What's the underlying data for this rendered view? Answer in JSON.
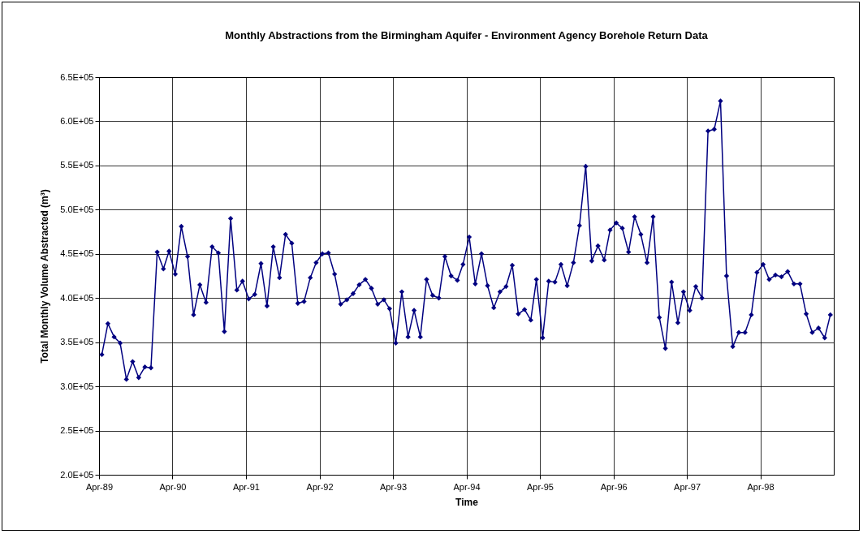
{
  "chart_data": {
    "type": "line",
    "title": "Monthly Abstractions from the Birmingham Aquifer - Environment Agency Borehole Return Data",
    "xlabel": "Time",
    "ylabel": "Total Monthly Volume Abstracted (m³)",
    "x": [
      "1989-04-15",
      "1989-05-15",
      "1989-06-15",
      "1989-07-15",
      "1989-08-15",
      "1989-09-15",
      "1989-10-15",
      "1989-11-15",
      "1989-12-15",
      "1990-01-15",
      "1990-02-15",
      "1990-03-15",
      "1990-04-15",
      "1990-05-15",
      "1990-06-15",
      "1990-07-15",
      "1990-08-15",
      "1990-09-15",
      "1990-10-15",
      "1990-11-15",
      "1990-12-15",
      "1991-01-15",
      "1991-02-15",
      "1991-03-15",
      "1991-04-15",
      "1991-05-15",
      "1991-06-15",
      "1991-07-15",
      "1991-08-15",
      "1991-09-15",
      "1991-10-15",
      "1991-11-15",
      "1991-12-15",
      "1992-01-15",
      "1992-02-15",
      "1992-03-15",
      "1992-04-15",
      "1992-05-15",
      "1992-06-15",
      "1992-07-15",
      "1992-08-15",
      "1992-09-15",
      "1992-10-15",
      "1992-11-15",
      "1992-12-15",
      "1993-01-15",
      "1993-02-15",
      "1993-03-15",
      "1993-04-15",
      "1993-05-15",
      "1993-06-15",
      "1993-07-15",
      "1993-08-15",
      "1993-09-15",
      "1993-10-15",
      "1993-11-15",
      "1993-12-15",
      "1994-01-15",
      "1994-02-15",
      "1994-03-15",
      "1994-04-15",
      "1994-05-15",
      "1994-06-15",
      "1994-07-15",
      "1994-08-15",
      "1994-09-15",
      "1994-10-15",
      "1994-11-15",
      "1994-12-15",
      "1995-01-15",
      "1995-02-15",
      "1995-03-15",
      "1995-04-15",
      "1995-05-15",
      "1995-06-15",
      "1995-07-15",
      "1995-08-15",
      "1995-09-15",
      "1995-10-15",
      "1995-11-15",
      "1995-12-15",
      "1996-01-15",
      "1996-02-15",
      "1996-03-15",
      "1996-04-15",
      "1996-05-15",
      "1996-06-15",
      "1996-07-15",
      "1996-08-15",
      "1996-09-15",
      "1996-10-15",
      "1996-11-15",
      "1996-12-15",
      "1997-01-15",
      "1997-02-15",
      "1997-03-15",
      "1997-04-15",
      "1997-05-15",
      "1997-06-15",
      "1997-07-15",
      "1997-08-15",
      "1997-09-15",
      "1997-10-15",
      "1997-11-15",
      "1997-12-15",
      "1998-01-15",
      "1998-02-15",
      "1998-03-15",
      "1998-04-15",
      "1998-05-15",
      "1998-06-15",
      "1998-07-15",
      "1998-08-15",
      "1998-09-15",
      "1998-10-15",
      "1998-11-15",
      "1998-12-15",
      "1999-01-15",
      "1999-02-15",
      "1999-03-15"
    ],
    "series": [
      {
        "color": "#000080",
        "values": [
          336000,
          371000,
          356000,
          349000,
          308000,
          328000,
          310000,
          322000,
          321000,
          452000,
          433000,
          453000,
          427000,
          481000,
          447000,
          381000,
          415000,
          395000,
          458000,
          451000,
          362000,
          490000,
          409000,
          419000,
          399000,
          404000,
          439000,
          391000,
          458000,
          423000,
          472000,
          462000,
          394000,
          396000,
          423000,
          440000,
          450000,
          451000,
          427000,
          393000,
          398000,
          405000,
          415000,
          421000,
          411000,
          393000,
          398000,
          388000,
          349000,
          407000,
          356000,
          386000,
          356000,
          421000,
          403000,
          400000,
          447000,
          425000,
          420000,
          438000,
          469000,
          416000,
          450000,
          414000,
          389000,
          407000,
          413000,
          437000,
          382000,
          387000,
          375000,
          421000,
          355000,
          419000,
          418000,
          438000,
          414000,
          440000,
          482000,
          549000,
          442000,
          459000,
          443000,
          477000,
          485000,
          479000,
          452000,
          492000,
          472000,
          440000,
          492000,
          378000,
          343000,
          418000,
          372000,
          407000,
          386000,
          413000,
          400000,
          589000,
          591000,
          623000,
          425000,
          345000,
          361000,
          361000,
          381000,
          429000,
          438000,
          421000,
          426000,
          424000,
          430000,
          416000,
          416000,
          382000,
          361000,
          366000,
          355000,
          381000
        ]
      }
    ],
    "xlim": [
      "1989-04",
      "1999-04"
    ],
    "xticks": [
      {
        "value": "1989-04",
        "label": "Apr-89"
      },
      {
        "value": "1990-04",
        "label": "Apr-90"
      },
      {
        "value": "1991-04",
        "label": "Apr-91"
      },
      {
        "value": "1992-04",
        "label": "Apr-92"
      },
      {
        "value": "1993-04",
        "label": "Apr-93"
      },
      {
        "value": "1994-04",
        "label": "Apr-94"
      },
      {
        "value": "1995-04",
        "label": "Apr-95"
      },
      {
        "value": "1996-04",
        "label": "Apr-96"
      },
      {
        "value": "1997-04",
        "label": "Apr-97"
      },
      {
        "value": "1998-04",
        "label": "Apr-98"
      }
    ],
    "ylim": [
      200000,
      650000
    ],
    "yticks": [
      {
        "value": 200000,
        "label": "2.0E+05"
      },
      {
        "value": 250000,
        "label": "2.5E+05"
      },
      {
        "value": 300000,
        "label": "3.0E+05"
      },
      {
        "value": 350000,
        "label": "3.5E+05"
      },
      {
        "value": 400000,
        "label": "4.0E+05"
      },
      {
        "value": 450000,
        "label": "4.5E+05"
      },
      {
        "value": 500000,
        "label": "5.0E+05"
      },
      {
        "value": 550000,
        "label": "5.5E+05"
      },
      {
        "value": 600000,
        "label": "6.0E+05"
      },
      {
        "value": 650000,
        "label": "6.5E+05"
      }
    ],
    "grid": true,
    "marker": "diamond",
    "line_style": "solid"
  }
}
